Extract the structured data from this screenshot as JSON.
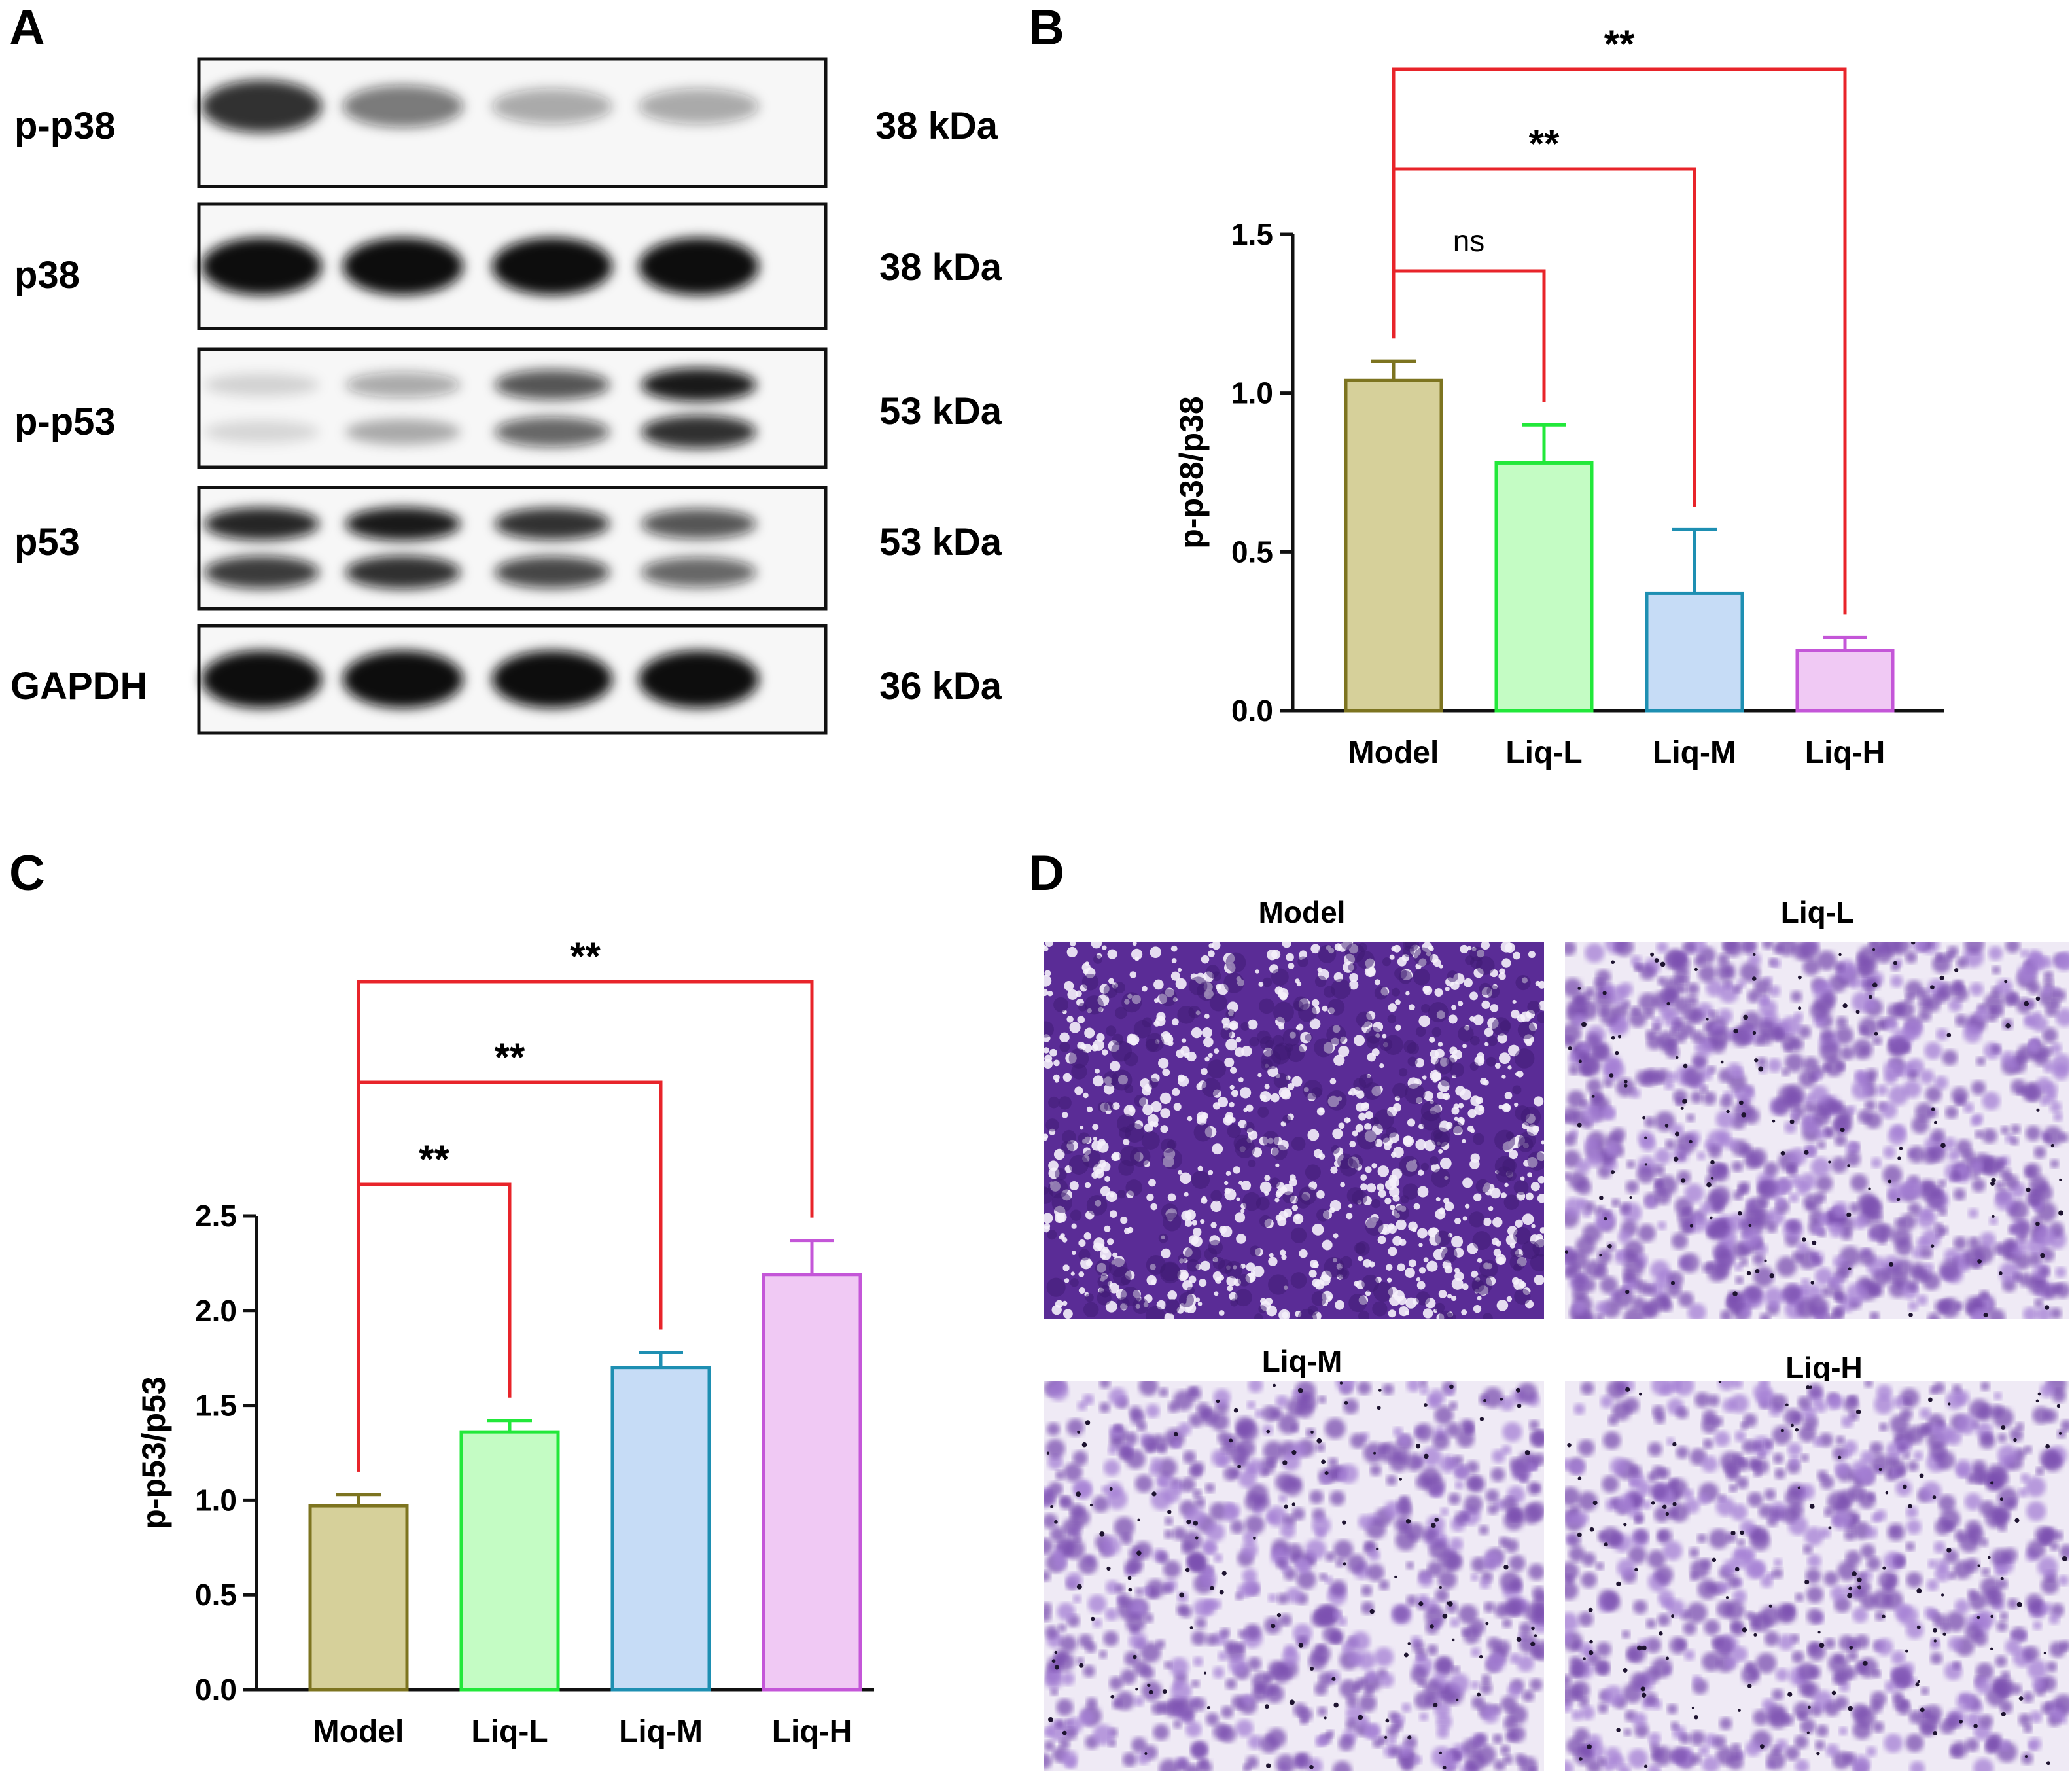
{
  "panels": {
    "a": {
      "letter": "A"
    },
    "b": {
      "letter": "B"
    },
    "c": {
      "letter": "C"
    },
    "d": {
      "letter": "D"
    }
  },
  "blot": {
    "rows": [
      {
        "label": "p-p38",
        "weight": "38 kDa",
        "intensity": [
          0.85,
          0.55,
          0.35,
          0.35
        ],
        "bands": 1
      },
      {
        "label": "p38",
        "weight": "38 kDa",
        "intensity": [
          1.0,
          1.0,
          1.0,
          1.0
        ],
        "bands": 1
      },
      {
        "label": "p-p53",
        "weight": "53 kDa",
        "intensity": [
          0.15,
          0.35,
          0.7,
          0.95
        ],
        "bands": 2
      },
      {
        "label": "p53",
        "weight": "53 kDa",
        "intensity": [
          0.9,
          0.95,
          0.85,
          0.7
        ],
        "bands": 2
      },
      {
        "label": "GAPDH",
        "weight": "36 kDa",
        "intensity": [
          1.0,
          1.0,
          1.0,
          1.0
        ],
        "bands": 1
      }
    ]
  },
  "chart_data": [
    {
      "type": "bar",
      "panel": "B",
      "categories": [
        "Model",
        "Liq-L",
        "Liq-M",
        "Liq-H"
      ],
      "values": [
        1.04,
        0.78,
        0.37,
        0.19
      ],
      "errors": [
        0.06,
        0.12,
        0.2,
        0.04
      ],
      "ylabel": "p-p38/p38",
      "ylim": [
        0,
        1.5
      ],
      "yticks": [
        "0.0",
        "0.5",
        "1.0",
        "1.5"
      ],
      "significance": [
        {
          "from": "Model",
          "to": "Liq-L",
          "label": "ns"
        },
        {
          "from": "Model",
          "to": "Liq-M",
          "label": "**"
        },
        {
          "from": "Model",
          "to": "Liq-H",
          "label": "**"
        }
      ]
    },
    {
      "type": "bar",
      "panel": "C",
      "categories": [
        "Model",
        "Liq-L",
        "Liq-M",
        "Liq-H"
      ],
      "values": [
        0.97,
        1.36,
        1.7,
        2.19
      ],
      "errors": [
        0.06,
        0.06,
        0.08,
        0.18
      ],
      "ylabel": "p-p53/p53",
      "ylim": [
        0,
        2.5
      ],
      "yticks": [
        "0.0",
        "0.5",
        "1.0",
        "1.5",
        "2.0",
        "2.5"
      ],
      "significance": [
        {
          "from": "Model",
          "to": "Liq-L",
          "label": "**"
        },
        {
          "from": "Model",
          "to": "Liq-M",
          "label": "**"
        },
        {
          "from": "Model",
          "to": "Liq-H",
          "label": "**"
        }
      ]
    }
  ],
  "bar_colors": {
    "fill": [
      "#d6d09a",
      "#c4fcc4",
      "#c6dcf6",
      "#f0c9f4"
    ],
    "stroke": [
      "#7d7420",
      "#22e83a",
      "#1e8fb2",
      "#c456d8"
    ],
    "bracket": "#e8242a",
    "axis": "#111111"
  },
  "micrographs": {
    "labels": [
      "Model",
      "Liq-L",
      "Liq-M",
      "Liq-H"
    ],
    "density": [
      0.75,
      0.45,
      0.3,
      0.3
    ],
    "stain": "#7b4fb0"
  }
}
